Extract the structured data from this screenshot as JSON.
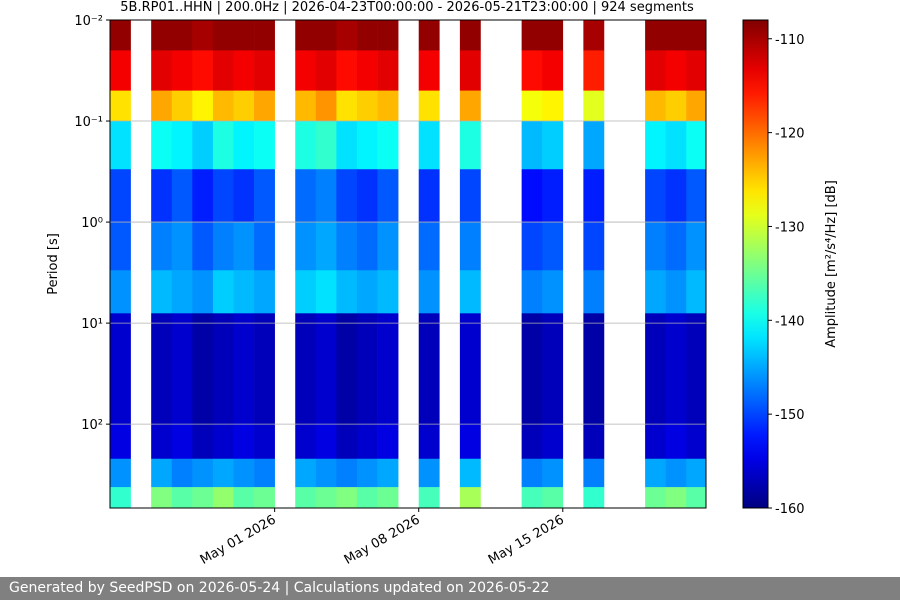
{
  "chart_data": {
    "type": "heatmap",
    "title": "5B.RP01..HHN | 200.0Hz | 2026-04-23T00:00:00 - 2026-05-21T23:00:00 | 924 segments",
    "y_label": "Period [s]",
    "colorbar_label": "Amplitude [m²/s⁴/Hz] [dB]",
    "x": [
      "2026-04-23",
      "2026-04-24",
      "2026-04-25",
      "2026-04-26",
      "2026-04-27",
      "2026-04-28",
      "2026-04-29",
      "2026-04-30",
      "2026-05-01",
      "2026-05-02",
      "2026-05-03",
      "2026-05-04",
      "2026-05-05",
      "2026-05-06",
      "2026-05-07",
      "2026-05-08",
      "2026-05-09",
      "2026-05-10",
      "2026-05-11",
      "2026-05-12",
      "2026-05-13",
      "2026-05-14",
      "2026-05-15",
      "2026-05-16",
      "2026-05-17",
      "2026-05-18",
      "2026-05-19",
      "2026-05-20",
      "2026-05-21"
    ],
    "y_edges": [
      0.01,
      0.02,
      0.05,
      0.1,
      0.3,
      1,
      3,
      8,
      100,
      220,
      420,
      676
    ],
    "z": [
      [
        -109,
        null,
        -109,
        -109,
        -110,
        -109,
        -109,
        -109,
        null,
        -109,
        -109,
        -110,
        -109,
        -109,
        null,
        -109,
        null,
        -109,
        null,
        null,
        -109,
        -109,
        null,
        -110,
        null,
        null,
        -109,
        -109,
        -109
      ],
      [
        -114,
        null,
        -113,
        -114,
        -115,
        -113,
        -114,
        -113,
        null,
        -114,
        -113,
        -115,
        -114,
        -113,
        null,
        -114,
        null,
        -113,
        null,
        null,
        -115,
        -114,
        null,
        -116,
        null,
        null,
        -113,
        -114,
        -113
      ],
      [
        -126,
        null,
        -123,
        -125,
        -127,
        -124,
        -125,
        -123,
        null,
        -124,
        -122,
        -126,
        -125,
        -124,
        null,
        -126,
        null,
        -123,
        null,
        null,
        -128,
        -127,
        null,
        -129,
        null,
        null,
        -124,
        -125,
        -123
      ],
      [
        -142,
        null,
        -140,
        -141,
        -143,
        -139,
        -141,
        -140,
        null,
        -139,
        -138,
        -142,
        -141,
        -140,
        null,
        -142,
        null,
        -139,
        null,
        null,
        -144,
        -143,
        null,
        -145,
        null,
        null,
        -141,
        -142,
        -140
      ],
      [
        -150,
        null,
        -151,
        -149,
        -152,
        -150,
        -151,
        -149,
        null,
        -148,
        -147,
        -150,
        -151,
        -149,
        null,
        -151,
        null,
        -150,
        null,
        null,
        -153,
        -152,
        null,
        -152,
        null,
        null,
        -150,
        -151,
        -149
      ],
      [
        -149,
        null,
        -147,
        -146,
        -149,
        -147,
        -146,
        -148,
        null,
        -146,
        -145,
        -147,
        -148,
        -146,
        null,
        -148,
        null,
        -147,
        null,
        null,
        -150,
        -149,
        null,
        -150,
        null,
        null,
        -147,
        -148,
        -146
      ],
      [
        -146,
        null,
        -144,
        -145,
        -146,
        -143,
        -144,
        -145,
        null,
        -143,
        -142,
        -144,
        -145,
        -144,
        null,
        -146,
        null,
        -144,
        null,
        null,
        -147,
        -146,
        null,
        -147,
        null,
        null,
        -145,
        -146,
        -144
      ],
      [
        -156,
        null,
        -157,
        -156,
        -158,
        -157,
        -156,
        -157,
        null,
        -157,
        -156,
        -158,
        -157,
        -156,
        null,
        -157,
        null,
        -156,
        null,
        null,
        -158,
        -157,
        null,
        -158,
        null,
        null,
        -157,
        -156,
        -157
      ],
      [
        -155,
        null,
        -156,
        -155,
        -157,
        -156,
        -155,
        -156,
        null,
        -156,
        -155,
        -157,
        -156,
        -155,
        null,
        -156,
        null,
        -155,
        null,
        null,
        -157,
        -156,
        null,
        -157,
        null,
        null,
        -156,
        -155,
        -156
      ],
      [
        -146,
        null,
        -145,
        -147,
        -146,
        -145,
        -146,
        -147,
        null,
        -145,
        -146,
        -147,
        -146,
        -145,
        null,
        -146,
        null,
        -144,
        null,
        null,
        -147,
        -146,
        null,
        -147,
        null,
        null,
        -145,
        -146,
        -145
      ],
      [
        -138,
        null,
        -134,
        -136,
        -135,
        -133,
        -136,
        -135,
        null,
        -136,
        -135,
        -134,
        -136,
        -135,
        null,
        -137,
        null,
        -132,
        null,
        null,
        -137,
        -136,
        null,
        -138,
        null,
        null,
        -135,
        -134,
        -136
      ]
    ],
    "xlim": [
      "2026-04-23T00:00:00",
      "2026-05-21T23:00:00"
    ],
    "xticks": [
      {
        "value": "2026-05-01",
        "label": "May 01 2026"
      },
      {
        "value": "2026-05-08",
        "label": "May 08 2026"
      },
      {
        "value": "2026-05-15",
        "label": "May 15 2026"
      }
    ],
    "ylim": [
      0.01,
      676
    ],
    "y_inverted": true,
    "y_log": true,
    "yticks": [
      {
        "value": 0.01,
        "label": "10⁻²"
      },
      {
        "value": 0.1,
        "label": "10⁻¹"
      },
      {
        "value": 1,
        "label": "10⁰"
      },
      {
        "value": 10,
        "label": "10¹"
      },
      {
        "value": 100,
        "label": "10²"
      }
    ],
    "grid": true,
    "colormap": "jet",
    "zlim": [
      -160,
      -108
    ],
    "zticks": [
      -110,
      -120,
      -130,
      -140,
      -150,
      -160
    ]
  },
  "footer": "Generated by SeedPSD on 2026-05-24 | Calculations updated on 2026-05-22"
}
